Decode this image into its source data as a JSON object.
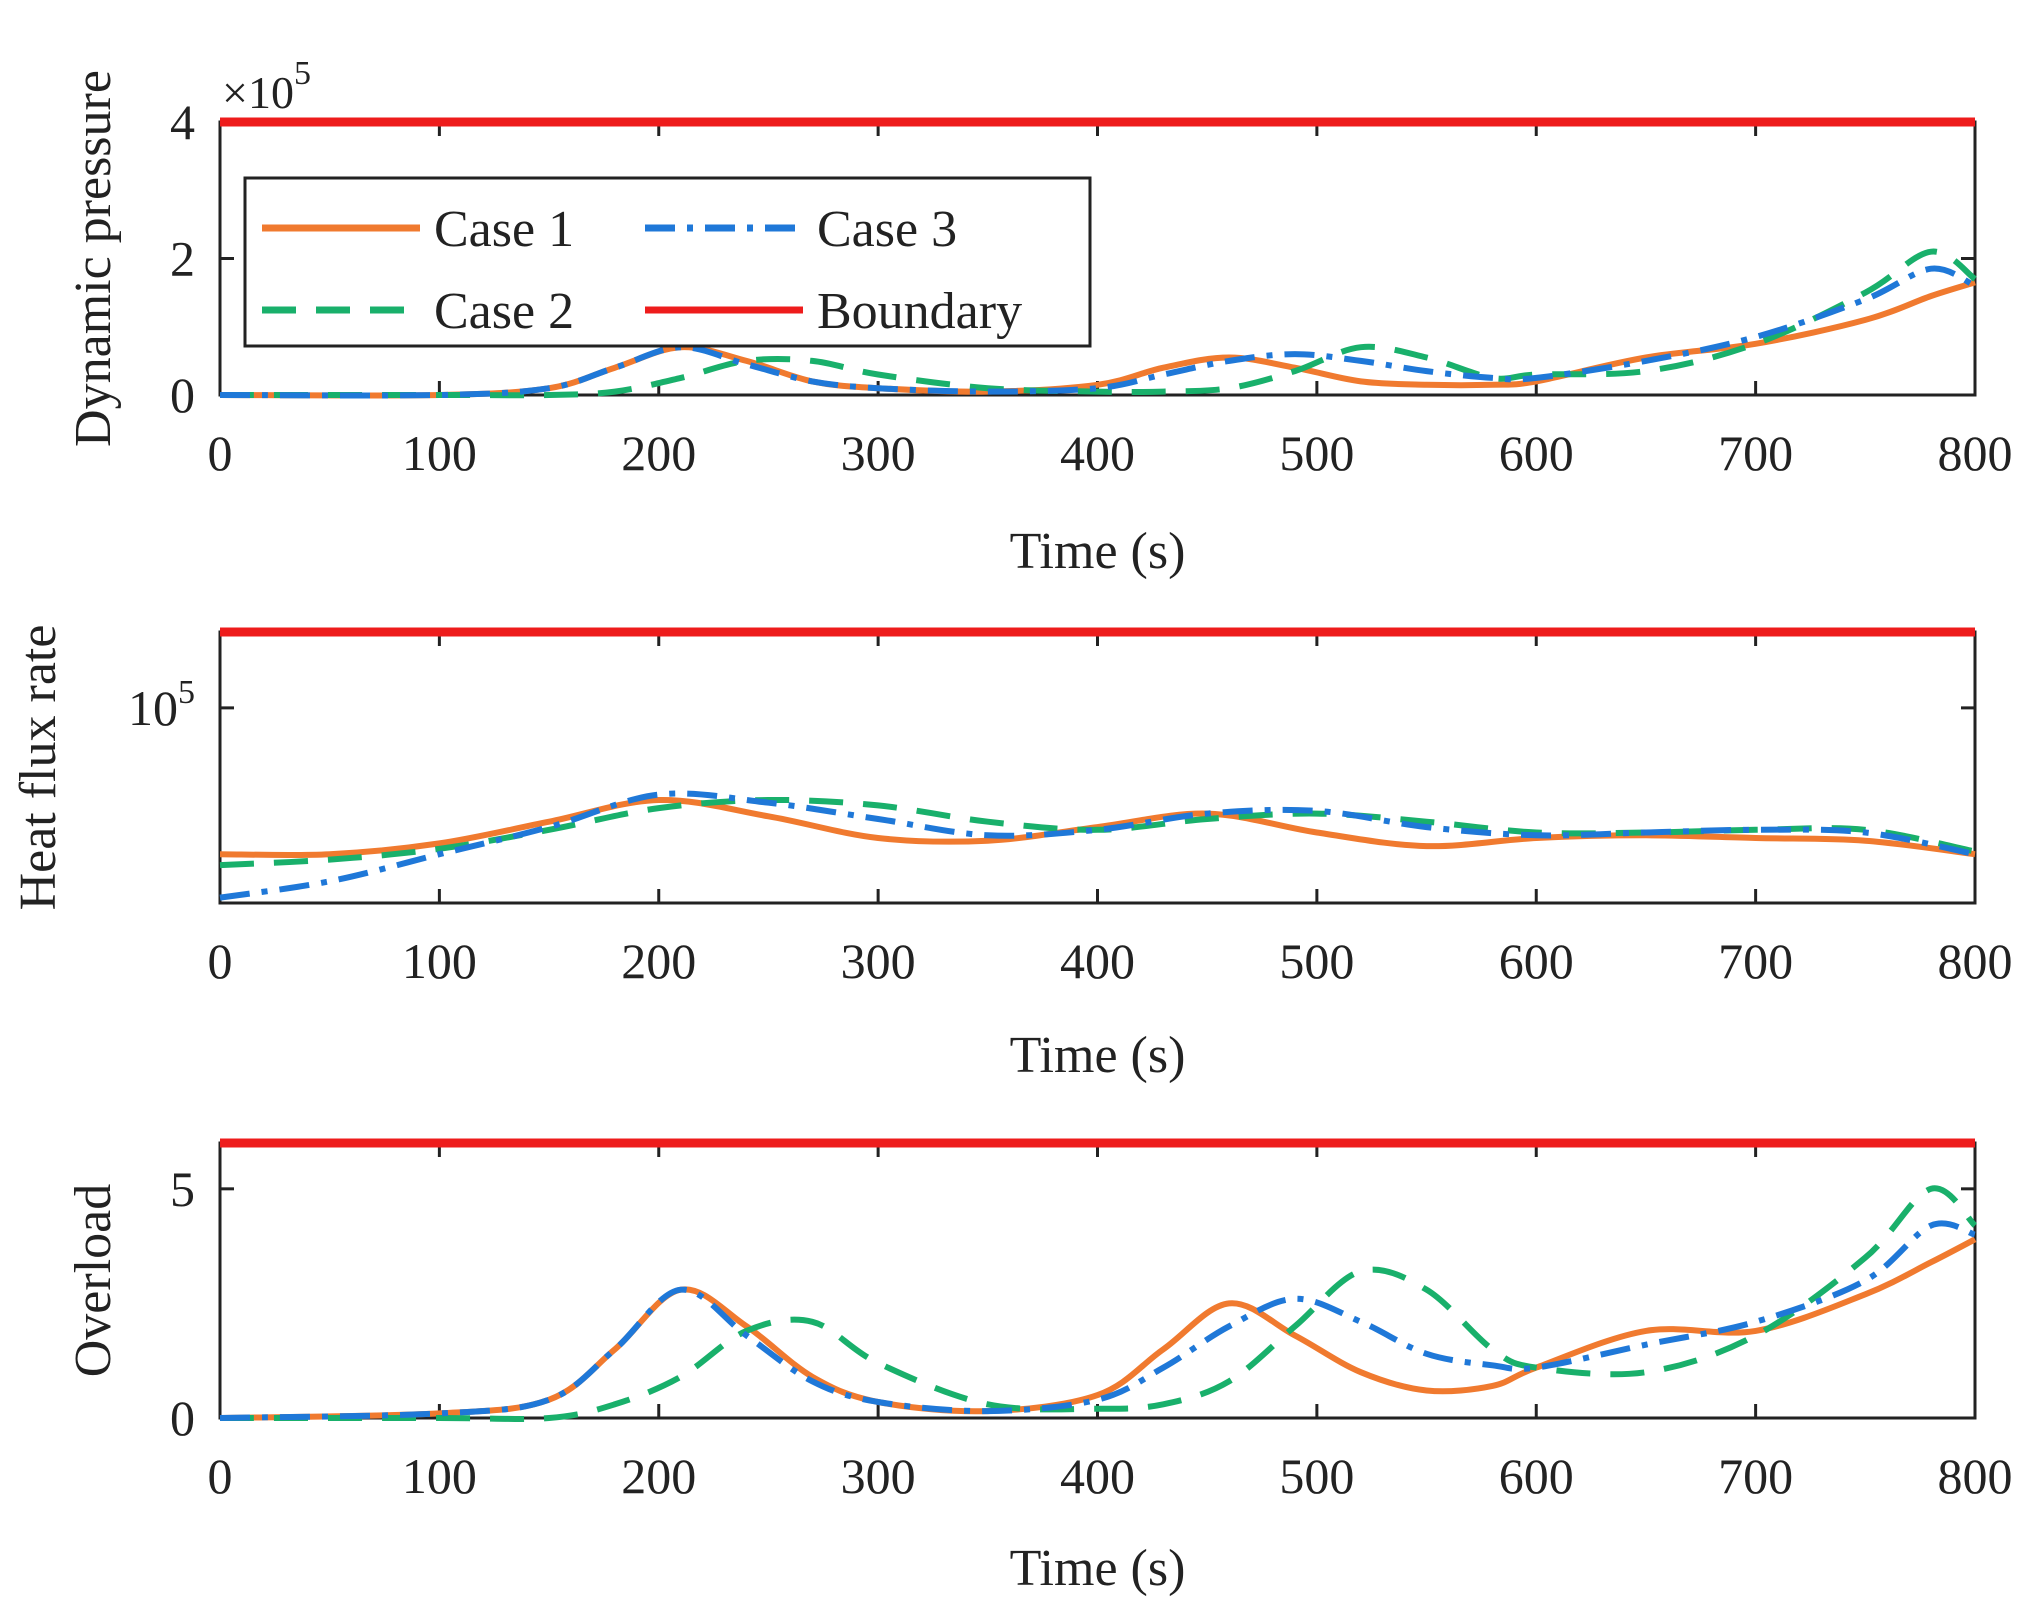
{
  "colors": {
    "case1": "#f07a2f",
    "case2": "#19b06b",
    "case3": "#1f78d8",
    "boundary": "#ee1c1c",
    "axis": "#222222"
  },
  "legend": [
    {
      "key": "case1",
      "label": "Case 1",
      "style": "solid"
    },
    {
      "key": "case3",
      "label": "Case 3",
      "style": "dashdot"
    },
    {
      "key": "case2",
      "label": "Case 2",
      "style": "dashed"
    },
    {
      "key": "boundary",
      "label": "Boundary",
      "style": "solid"
    }
  ],
  "chart_data": [
    {
      "type": "line",
      "id": "dynamic-pressure",
      "ylabel": "Dynamic pressure",
      "xlabel": "Time (s)",
      "exponent_prefix": "×10",
      "exponent_power": "5",
      "xlim": [
        0,
        800
      ],
      "ylim": [
        0,
        4
      ],
      "xticks": [
        "0",
        "100",
        "200",
        "300",
        "400",
        "500",
        "600",
        "700",
        "800"
      ],
      "xtick_values": [
        0,
        100,
        200,
        300,
        400,
        500,
        600,
        700,
        800
      ],
      "yticks": [
        "0",
        "2",
        "4"
      ],
      "ytick_values": [
        0,
        2,
        4
      ],
      "x": [
        0,
        100,
        150,
        180,
        210,
        240,
        270,
        300,
        350,
        400,
        430,
        460,
        490,
        520,
        550,
        580,
        600,
        650,
        700,
        750,
        780,
        800
      ],
      "series": [
        {
          "name": "Case 1",
          "key": "case1",
          "values": [
            0,
            0,
            0.1,
            0.4,
            0.7,
            0.5,
            0.2,
            0.1,
            0.05,
            0.15,
            0.4,
            0.55,
            0.4,
            0.2,
            0.15,
            0.15,
            0.2,
            0.55,
            0.75,
            1.1,
            1.45,
            1.65
          ]
        },
        {
          "name": "Case 2",
          "key": "case2",
          "values": [
            0,
            0,
            0,
            0.05,
            0.25,
            0.5,
            0.5,
            0.3,
            0.1,
            0.05,
            0.05,
            0.1,
            0.35,
            0.7,
            0.55,
            0.25,
            0.3,
            0.35,
            0.75,
            1.5,
            2.1,
            1.7
          ]
        },
        {
          "name": "Case 3",
          "key": "case3",
          "values": [
            0,
            0,
            0.1,
            0.4,
            0.7,
            0.45,
            0.2,
            0.1,
            0.05,
            0.1,
            0.3,
            0.5,
            0.6,
            0.5,
            0.35,
            0.25,
            0.25,
            0.5,
            0.85,
            1.4,
            1.85,
            1.6
          ]
        }
      ],
      "boundary": 4
    },
    {
      "type": "line",
      "id": "heat-flux-rate",
      "ylabel": "Heat flux rate",
      "xlabel": "Time (s)",
      "xlim": [
        0,
        800
      ],
      "ylim": [
        0,
        1
      ],
      "xticks": [
        "0",
        "100",
        "200",
        "300",
        "400",
        "500",
        "600",
        "700",
        "800"
      ],
      "xtick_values": [
        0,
        100,
        200,
        300,
        400,
        500,
        600,
        700,
        800
      ],
      "ytick_base": "10",
      "ytick_power": "5",
      "ytick_value": 0.72,
      "x": [
        0,
        50,
        100,
        150,
        200,
        250,
        300,
        350,
        400,
        450,
        500,
        550,
        600,
        650,
        700,
        750,
        800
      ],
      "series": [
        {
          "name": "Case 1",
          "key": "case1",
          "values": [
            0.18,
            0.18,
            0.22,
            0.3,
            0.38,
            0.32,
            0.24,
            0.23,
            0.28,
            0.33,
            0.26,
            0.21,
            0.24,
            0.25,
            0.24,
            0.23,
            0.18
          ]
        },
        {
          "name": "Case 2",
          "key": "case2",
          "values": [
            0.14,
            0.16,
            0.2,
            0.27,
            0.35,
            0.38,
            0.36,
            0.3,
            0.27,
            0.31,
            0.33,
            0.3,
            0.26,
            0.26,
            0.27,
            0.27,
            0.19
          ]
        },
        {
          "name": "Case 3",
          "key": "case3",
          "values": [
            0.02,
            0.08,
            0.18,
            0.28,
            0.4,
            0.37,
            0.31,
            0.25,
            0.27,
            0.33,
            0.34,
            0.28,
            0.25,
            0.26,
            0.27,
            0.26,
            0.18
          ]
        }
      ],
      "boundary": 1
    },
    {
      "type": "line",
      "id": "overload",
      "ylabel": "Overload",
      "xlabel": "Time (s)",
      "xlim": [
        0,
        800
      ],
      "ylim": [
        0,
        6
      ],
      "xticks": [
        "0",
        "100",
        "200",
        "300",
        "400",
        "500",
        "600",
        "700",
        "800"
      ],
      "xtick_values": [
        0,
        100,
        200,
        300,
        400,
        500,
        600,
        700,
        800
      ],
      "yticks": [
        "0",
        "5"
      ],
      "ytick_values": [
        0,
        5
      ],
      "x": [
        0,
        100,
        150,
        180,
        210,
        240,
        270,
        300,
        350,
        400,
        430,
        460,
        490,
        520,
        550,
        580,
        600,
        650,
        700,
        750,
        780,
        800
      ],
      "series": [
        {
          "name": "Case 1",
          "key": "case1",
          "values": [
            0,
            0.1,
            0.4,
            1.5,
            2.8,
            2.0,
            0.9,
            0.35,
            0.15,
            0.5,
            1.5,
            2.5,
            1.8,
            1.0,
            0.6,
            0.7,
            1.1,
            1.9,
            1.9,
            2.7,
            3.4,
            3.9
          ]
        },
        {
          "name": "Case 2",
          "key": "case2",
          "values": [
            0,
            0,
            0,
            0.3,
            0.9,
            1.9,
            2.1,
            1.2,
            0.3,
            0.2,
            0.3,
            0.8,
            2.0,
            3.2,
            2.8,
            1.5,
            1.1,
            1.0,
            1.8,
            3.5,
            5.0,
            4.2
          ]
        },
        {
          "name": "Case 3",
          "key": "case3",
          "values": [
            0,
            0.1,
            0.4,
            1.5,
            2.8,
            1.8,
            0.8,
            0.35,
            0.15,
            0.4,
            1.1,
            2.0,
            2.6,
            2.1,
            1.4,
            1.15,
            1.1,
            1.6,
            2.1,
            3.0,
            4.2,
            4.0
          ]
        }
      ],
      "boundary": 6
    }
  ]
}
